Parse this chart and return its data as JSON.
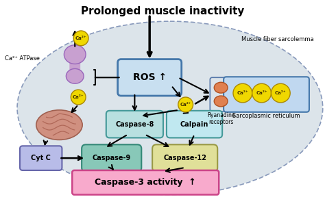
{
  "title": "Prolonged muscle inactivity",
  "muscle_fiber_label": "Muscle fiber sarcolemma",
  "ca2atpase_label": "Ca²⁺ ATPase",
  "ros_label": "ROS ↑",
  "cytc_label": "Cyt C",
  "casp8_label": "Caspase-8",
  "calpain_label": "Calpain",
  "casp9_label": "Caspase-9",
  "casp12_label": "Caspase-12",
  "casp3_label": "Caspase-3 activity  ↑",
  "ryanadine_label": "Ryanadine\nreceptors",
  "sarco_label": "Sarcoplasmic reticulum",
  "ca2_label": "Ca²⁺",
  "ros_box_color": "#c8dff0",
  "ros_box_edge": "#4477aa",
  "casp8_box_color": "#b8e0e0",
  "casp8_box_edge": "#449999",
  "calpain_box_color": "#c0e8f0",
  "calpain_box_edge": "#449999",
  "casp9_box_color": "#88c8b8",
  "casp9_box_edge": "#338877",
  "casp12_box_color": "#e0e099",
  "casp12_box_edge": "#999944",
  "cytc_box_color": "#b8bce8",
  "cytc_box_edge": "#6666aa",
  "casp3_box_color": "#f8aacc",
  "casp3_box_edge": "#cc4488",
  "ca2_circle_color": "#f0d800",
  "ca2_circle_edge": "#aa8800",
  "sarcoplasmic_box_color": "#c0d8f0",
  "sarcoplasmic_box_edge": "#4477aa",
  "atpase_color": "#c8a0d0",
  "atpase_edge": "#9966bb",
  "mito_color": "#d09080",
  "mito_edge": "#a06050",
  "ryan_color": "#e08050",
  "ryan_edge": "#b05020",
  "title_fontsize": 11,
  "label_fontsize": 7,
  "small_fontsize": 6,
  "ca2_fontsize": 5
}
